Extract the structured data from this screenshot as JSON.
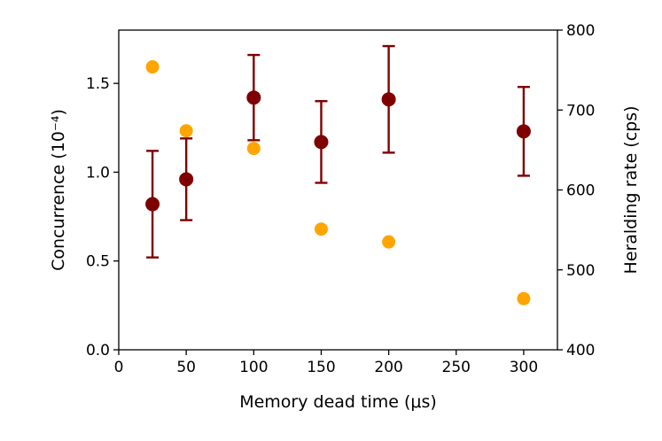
{
  "chart_data": {
    "type": "scatter",
    "title": "",
    "xlabel": "Memory dead time (μs)",
    "ylabel": "Concurrence (10⁻⁴)",
    "ylabel_right": "Heralding rate (cps)",
    "xlim": [
      0,
      325
    ],
    "ylim": [
      0,
      1.8
    ],
    "ylim_right": [
      400,
      800
    ],
    "x_ticks": [
      "0",
      "50",
      "100",
      "150",
      "200",
      "250",
      "300"
    ],
    "y_ticks": [
      "0.0",
      "0.5",
      "1.0",
      "1.5"
    ],
    "y_ticks_right": [
      "400",
      "500",
      "600",
      "700",
      "800"
    ],
    "legend": "none",
    "grid": false,
    "series": [
      {
        "axis": "left",
        "color": "#7f0000",
        "marker": "circle-with-errorbars",
        "points": [
          {
            "x": 25,
            "y": 0.82,
            "err": 0.3
          },
          {
            "x": 50,
            "y": 0.96,
            "err": 0.23
          },
          {
            "x": 100,
            "y": 1.42,
            "err": 0.24
          },
          {
            "x": 150,
            "y": 1.17,
            "err": 0.23
          },
          {
            "x": 200,
            "y": 1.41,
            "err": 0.3
          },
          {
            "x": 300,
            "y": 1.23,
            "err": 0.25
          }
        ]
      },
      {
        "axis": "right",
        "color": "#ffa500",
        "marker": "circle",
        "points": [
          {
            "x": 25,
            "y": 754
          },
          {
            "x": 50,
            "y": 674
          },
          {
            "x": 100,
            "y": 652
          },
          {
            "x": 150,
            "y": 551
          },
          {
            "x": 200,
            "y": 535
          },
          {
            "x": 300,
            "y": 464
          }
        ]
      }
    ]
  }
}
